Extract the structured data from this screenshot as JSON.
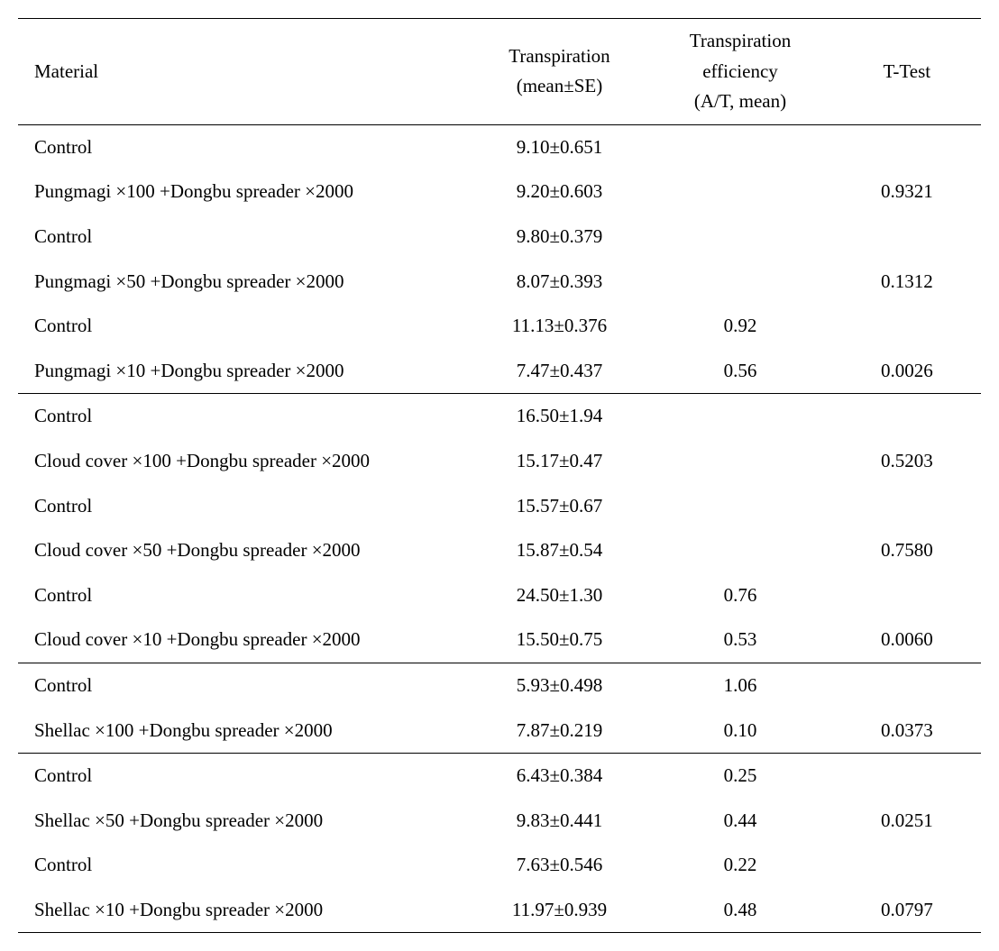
{
  "headers": {
    "material": "Material",
    "transpiration_line1": "Transpiration",
    "transpiration_line2": "(mean±SE)",
    "efficiency_line1": "Transpiration",
    "efficiency_line2": "efficiency",
    "efficiency_line3": "(A/T, mean)",
    "ttest": "T-Test"
  },
  "rows": [
    {
      "material": "Control",
      "transpiration": "9.10±0.651",
      "efficiency": "",
      "ttest": "",
      "section_end": false
    },
    {
      "material": "Pungmagi ×100 +Dongbu spreader ×2000",
      "transpiration": "9.20±0.603",
      "efficiency": "",
      "ttest": "0.9321",
      "section_end": false
    },
    {
      "material": "Control",
      "transpiration": "9.80±0.379",
      "efficiency": "",
      "ttest": "",
      "section_end": false
    },
    {
      "material": "Pungmagi ×50 +Dongbu spreader ×2000",
      "transpiration": "8.07±0.393",
      "efficiency": "",
      "ttest": "0.1312",
      "section_end": false
    },
    {
      "material": "Control",
      "transpiration": "11.13±0.376",
      "efficiency": "0.92",
      "ttest": "",
      "section_end": false
    },
    {
      "material": "Pungmagi ×10 +Dongbu spreader ×2000",
      "transpiration": "7.47±0.437",
      "efficiency": "0.56",
      "ttest": "0.0026",
      "section_end": true
    },
    {
      "material": "Control",
      "transpiration": "16.50±1.94",
      "efficiency": "",
      "ttest": "",
      "section_end": false
    },
    {
      "material": "Cloud cover ×100 +Dongbu spreader ×2000",
      "transpiration": "15.17±0.47",
      "efficiency": "",
      "ttest": "0.5203",
      "section_end": false
    },
    {
      "material": "Control",
      "transpiration": "15.57±0.67",
      "efficiency": "",
      "ttest": "",
      "section_end": false
    },
    {
      "material": "Cloud cover ×50 +Dongbu spreader ×2000",
      "transpiration": "15.87±0.54",
      "efficiency": "",
      "ttest": "0.7580",
      "section_end": false
    },
    {
      "material": "Control",
      "transpiration": "24.50±1.30",
      "efficiency": "0.76",
      "ttest": "",
      "section_end": false
    },
    {
      "material": "Cloud cover ×10 +Dongbu spreader ×2000",
      "transpiration": "15.50±0.75",
      "efficiency": "0.53",
      "ttest": "0.0060",
      "section_end": true
    },
    {
      "material": "Control",
      "transpiration": "5.93±0.498",
      "efficiency": "1.06",
      "ttest": "",
      "section_end": false
    },
    {
      "material": "Shellac ×100 +Dongbu spreader ×2000",
      "transpiration": "7.87±0.219",
      "efficiency": "0.10",
      "ttest": "0.0373",
      "section_end": true
    },
    {
      "material": "Control",
      "transpiration": "6.43±0.384",
      "efficiency": "0.25",
      "ttest": "",
      "section_end": false
    },
    {
      "material": "Shellac ×50 +Dongbu spreader ×2000",
      "transpiration": "9.83±0.441",
      "efficiency": "0.44",
      "ttest": "0.0251",
      "section_end": false
    },
    {
      "material": "Control",
      "transpiration": "7.63±0.546",
      "efficiency": "0.22",
      "ttest": "",
      "section_end": false
    },
    {
      "material": "Shellac ×10 +Dongbu spreader ×2000",
      "transpiration": "11.97±0.939",
      "efficiency": "0.48",
      "ttest": "0.0797",
      "section_end": false
    }
  ]
}
